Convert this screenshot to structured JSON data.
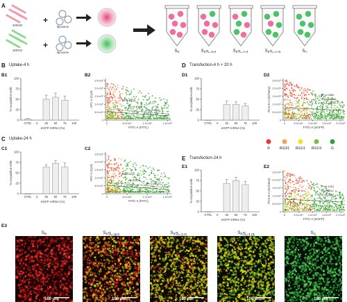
{
  "panelA": {
    "letter": "A",
    "strand_red_label": "100%R",
    "strand_green_label": "100%G",
    "liposome_label": "liposome",
    "tubes": [
      "S_R",
      "S_RS_G3/1",
      "S_RS_G1/1",
      "S_RS_G1/3",
      "S_G"
    ]
  },
  "panelB": {
    "letter": "B",
    "title": "Uptake-4 h",
    "b1": {
      "letter": "B1",
      "ylabel": "% co-positive cells",
      "xlabel": "eGFP mRNA (%)",
      "xticks": [
        "CTRL",
        "0",
        "25",
        "50",
        "75",
        "100"
      ]
    },
    "b2": {
      "letter": "B2",
      "ylabel": "APC-A (CyS)",
      "xlabel": "FITC-A (FITC)",
      "xticks": [
        "0",
        "5.0×10⁴",
        "1.0×10⁵",
        "1.5×10⁵"
      ],
      "yticks": [
        "0",
        "5.0×10⁴",
        "1.0×10⁵",
        "1.5×10⁵",
        "2.0×10⁵",
        "2.5×10⁵"
      ],
      "r2": [
        "R²=0.2576",
        "R²=0.3068",
        "R²=0.3899"
      ]
    }
  },
  "panelC": {
    "letter": "C",
    "title": "Uptake-24 h",
    "c1": {
      "letter": "C1",
      "ylabel": "% co-positive cells",
      "xlabel": "eGFP mRNA (%)",
      "xticks": [
        "CTRL",
        "0",
        "25",
        "50",
        "75",
        "100"
      ]
    },
    "c2": {
      "letter": "C2",
      "ylabel": "APC-A (CyS)",
      "xlabel": "FITC-A (FITC)",
      "xticks": [
        "0",
        "5.0×10⁴",
        "1.0×10⁵",
        "1.5×10⁵"
      ],
      "yticks": [
        "0",
        "5.0×10⁴",
        "1.0×10⁵",
        "1.5×10⁵",
        "2.0×10⁵",
        "2.5×10⁵"
      ],
      "r2": [
        "R²=0.4217",
        "R²=0.435",
        "R²=0.4311"
      ]
    }
  },
  "panelD": {
    "letter": "D",
    "title": "Transfection-4 h + 20 h",
    "d1": {
      "letter": "D1",
      "ylabel": "% co-positive cells",
      "xlabel": "eGFP mRNA (%)",
      "xticks": [
        "CTRL",
        "0",
        "25",
        "50",
        "75",
        "100"
      ]
    },
    "d2": {
      "letter": "D2",
      "ylabel": "PCS-5-A (mCherry)",
      "xlabel": "FITC-A (eGFP)",
      "xticks": [
        "0",
        "5.0×10⁴",
        "1.0×10⁵",
        "1.5×10⁵",
        "2.0×10⁵"
      ],
      "yticks": [
        "0",
        "5.0×10⁴",
        "1.0×10⁵",
        "1.5×10⁵",
        "2.0×10⁵",
        "2.5×10⁵"
      ],
      "r2": [
        "R²=0.0482",
        "R²=0.04598",
        "R²=0.02975"
      ]
    }
  },
  "panelE": {
    "letter": "E",
    "title": "Transfection-24 h",
    "e1": {
      "letter": "E1",
      "ylabel": "% co-positive cells",
      "xlabel": "eGFP mRNA (%)",
      "xticks": [
        "CTRL",
        "0",
        "25",
        "50",
        "75",
        "100"
      ]
    },
    "e2": {
      "letter": "E2",
      "ylabel": "PCS-5-A (mCherry)",
      "xlabel": "FITC-A (eGFP)",
      "xticks": [
        "0",
        "5.0×10⁴",
        "1.0×10⁵",
        "1.5×10⁵",
        "2.0×10⁵"
      ],
      "yticks": [
        "0",
        "5.0×10⁴",
        "1.0×10⁵",
        "1.5×10⁵",
        "2.0×10⁵",
        "2.5×10⁵"
      ],
      "r2": [
        "R²=0.1251",
        "R²=0.1112",
        "R²=0.0652"
      ]
    }
  },
  "legend": {
    "items": [
      {
        "label": "R",
        "color": "#e53935"
      },
      {
        "label": "RG3/1",
        "color": "#f4a259"
      },
      {
        "label": "RG1/1",
        "color": "#f2e41a"
      },
      {
        "label": "RG1/3",
        "color": "#7bc043"
      },
      {
        "label": "G",
        "color": "#2e9e3f"
      }
    ]
  },
  "panelE3": {
    "letter": "E3",
    "images": [
      {
        "label": "S_R",
        "scale": "100 μm"
      },
      {
        "label": "S_RS_G3/1",
        "scale": "100 μm"
      },
      {
        "label": "S_RS_G1/1",
        "scale": "100 μm"
      },
      {
        "label": "S_RS_G1/3",
        "scale": "100 μm"
      },
      {
        "label": "S_G",
        "scale": "100 μm"
      }
    ]
  },
  "chart_data": [
    {
      "type": "bar",
      "categories": [
        "CTRL",
        "0",
        "25",
        "50",
        "75",
        "100"
      ],
      "values": [
        3,
        null,
        50,
        55,
        48,
        null
      ],
      "errors": [
        1,
        null,
        10,
        10,
        10,
        null
      ],
      "ylim": [
        0,
        100
      ],
      "xlabel": "eGFP mRNA (%)",
      "ylabel": "% co-positive cells"
    },
    {
      "type": "bar",
      "categories": [
        "CTRL",
        "0",
        "25",
        "50",
        "75",
        "100"
      ],
      "values": [
        0,
        null,
        64,
        73,
        64,
        null
      ],
      "errors": [
        0,
        null,
        6,
        6,
        10,
        null
      ],
      "ylim": [
        0,
        100
      ],
      "xlabel": "eGFP mRNA (%)",
      "ylabel": "% co-positive cells"
    },
    {
      "type": "bar",
      "categories": [
        "CTRL",
        "0",
        "25",
        "50",
        "75",
        "100"
      ],
      "values": [
        0,
        null,
        38,
        38,
        34,
        null
      ],
      "errors": [
        0,
        null,
        8,
        6,
        6,
        null
      ],
      "ylim": [
        0,
        100
      ],
      "xlabel": "eGFP mRNA (%)",
      "ylabel": "% co-positive cells"
    },
    {
      "type": "bar",
      "categories": [
        "CTRL",
        "0",
        "25",
        "50",
        "75",
        "100"
      ],
      "values": [
        0,
        null,
        68,
        75,
        65,
        null
      ],
      "errors": [
        0,
        null,
        10,
        8,
        8,
        null
      ],
      "ylim": [
        0,
        100
      ],
      "xlabel": "eGFP mRNA (%)",
      "ylabel": "% co-positive cells"
    }
  ]
}
